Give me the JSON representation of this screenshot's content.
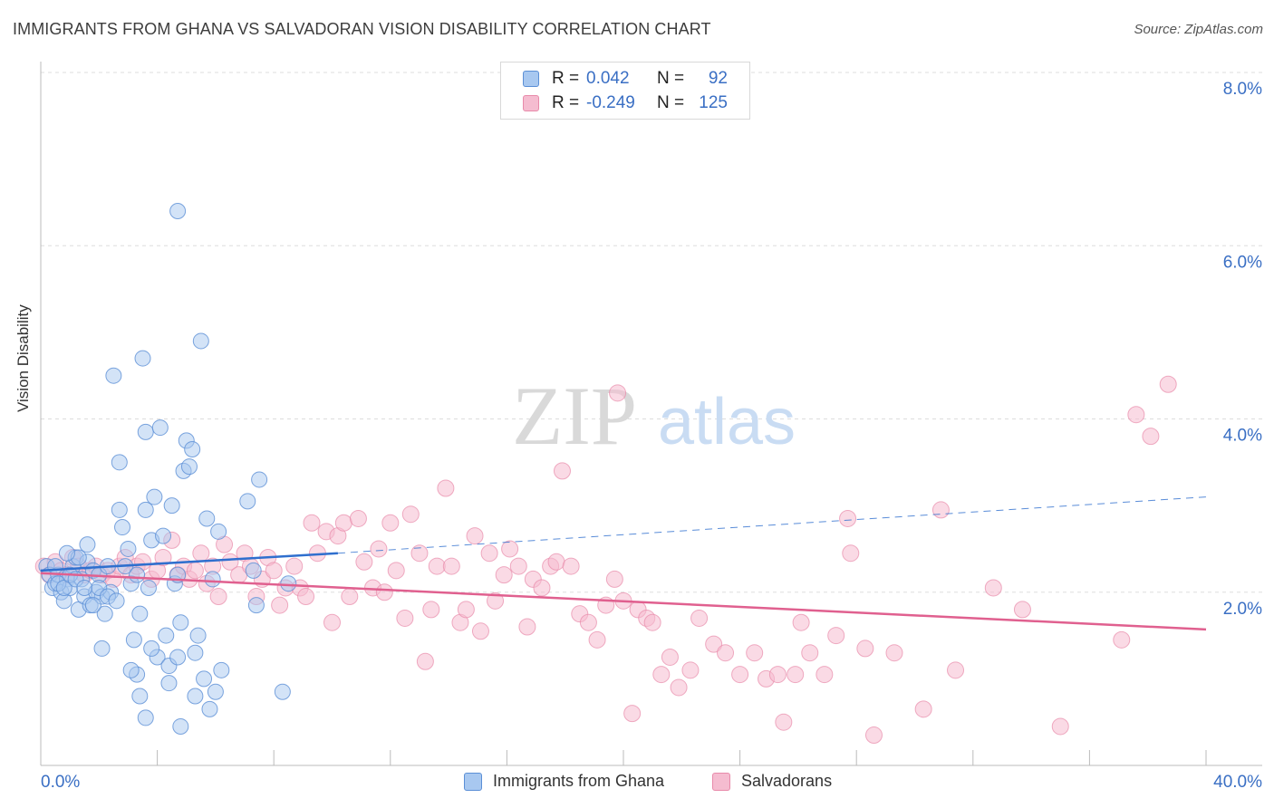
{
  "title": "IMMIGRANTS FROM GHANA VS SALVADORAN VISION DISABILITY CORRELATION CHART",
  "source": "Source: ZipAtlas.com",
  "watermark": {
    "zip": "ZIP",
    "atlas": "atlas"
  },
  "legend": {
    "r_label": "R =",
    "n_label": "N =",
    "series": [
      {
        "name": "Immigrants from Ghana",
        "r": "0.042",
        "n": "92"
      },
      {
        "name": "Salvadorans",
        "r": "-0.249",
        "n": "125"
      }
    ]
  },
  "colors": {
    "blue_fill": "#a8c8f0",
    "blue_stroke": "#5b8fd6",
    "blue_line": "#2f6fce",
    "pink_fill": "#f5bcd0",
    "pink_stroke": "#e88aaa",
    "pink_line": "#e0608f",
    "axis_text": "#3a6fc4",
    "grid": "#dddddd"
  },
  "chart_data": {
    "type": "scatter",
    "title": "IMMIGRANTS FROM GHANA VS SALVADORAN VISION DISABILITY CORRELATION CHART",
    "xlabel": "",
    "ylabel": "Vision Disability",
    "xlim": [
      0,
      40
    ],
    "ylim": [
      0,
      8.0
    ],
    "x_tick_labels": [
      "0.0%",
      "40.0%"
    ],
    "y_ticks": [
      2.0,
      4.0,
      6.0,
      8.0
    ],
    "y_tick_labels": [
      "2.0%",
      "4.0%",
      "6.0%",
      "8.0%"
    ],
    "grid": true,
    "series": [
      {
        "name": "Immigrants from Ghana",
        "trend": {
          "x0": 0,
          "y0": 2.25,
          "x1": 10.2,
          "y1": 2.45,
          "dash_x1": 40,
          "dash_y1": 3.1
        },
        "points": [
          [
            0.2,
            2.3
          ],
          [
            0.3,
            2.2
          ],
          [
            0.4,
            2.05
          ],
          [
            0.5,
            2.1
          ],
          [
            0.6,
            2.2
          ],
          [
            0.7,
            2.0
          ],
          [
            0.8,
            1.9
          ],
          [
            0.9,
            2.15
          ],
          [
            1.0,
            2.05
          ],
          [
            1.1,
            2.3
          ],
          [
            1.2,
            2.4
          ],
          [
            1.3,
            1.8
          ],
          [
            1.4,
            2.15
          ],
          [
            1.5,
            1.95
          ],
          [
            1.6,
            2.35
          ],
          [
            1.7,
            1.85
          ],
          [
            1.8,
            2.25
          ],
          [
            1.9,
            2.0
          ],
          [
            2.0,
            2.2
          ],
          [
            2.1,
            1.95
          ],
          [
            2.2,
            1.75
          ],
          [
            2.3,
            2.3
          ],
          [
            2.4,
            2.0
          ],
          [
            0.5,
            2.3
          ],
          [
            0.6,
            2.1
          ],
          [
            0.8,
            2.05
          ],
          [
            1.0,
            2.2
          ],
          [
            1.2,
            2.15
          ],
          [
            1.5,
            2.05
          ],
          [
            1.8,
            1.85
          ],
          [
            2.5,
            4.5
          ],
          [
            2.7,
            3.5
          ],
          [
            2.7,
            2.95
          ],
          [
            2.8,
            2.75
          ],
          [
            2.9,
            2.3
          ],
          [
            3.0,
            2.5
          ],
          [
            3.1,
            2.1
          ],
          [
            3.2,
            1.45
          ],
          [
            3.3,
            2.2
          ],
          [
            3.4,
            1.75
          ],
          [
            3.5,
            4.7
          ],
          [
            3.6,
            3.85
          ],
          [
            3.6,
            2.95
          ],
          [
            3.7,
            2.05
          ],
          [
            3.8,
            2.6
          ],
          [
            3.9,
            3.1
          ],
          [
            4.0,
            1.25
          ],
          [
            4.1,
            3.9
          ],
          [
            4.2,
            2.65
          ],
          [
            4.3,
            1.5
          ],
          [
            4.4,
            1.15
          ],
          [
            4.5,
            3.0
          ],
          [
            4.6,
            2.1
          ],
          [
            4.7,
            1.25
          ],
          [
            4.8,
            1.65
          ],
          [
            4.9,
            3.4
          ],
          [
            5.0,
            3.75
          ],
          [
            5.1,
            3.45
          ],
          [
            5.2,
            3.65
          ],
          [
            5.3,
            1.3
          ],
          [
            5.4,
            1.5
          ],
          [
            5.5,
            4.9
          ],
          [
            5.6,
            1.0
          ],
          [
            5.7,
            2.85
          ],
          [
            5.9,
            2.15
          ],
          [
            6.0,
            0.85
          ],
          [
            6.1,
            2.7
          ],
          [
            6.2,
            1.1
          ],
          [
            7.1,
            3.05
          ],
          [
            7.3,
            2.25
          ],
          [
            7.4,
            1.85
          ],
          [
            7.5,
            3.3
          ],
          [
            8.3,
            0.85
          ],
          [
            8.5,
            2.1
          ],
          [
            2.0,
            2.05
          ],
          [
            2.3,
            1.95
          ],
          [
            2.1,
            1.35
          ],
          [
            2.6,
            1.9
          ],
          [
            3.8,
            1.35
          ],
          [
            3.3,
            1.05
          ],
          [
            3.6,
            0.55
          ],
          [
            3.1,
            1.1
          ],
          [
            4.7,
            2.2
          ],
          [
            5.3,
            0.8
          ],
          [
            4.4,
            0.95
          ],
          [
            5.8,
            0.65
          ],
          [
            4.8,
            0.45
          ],
          [
            3.4,
            0.8
          ],
          [
            4.7,
            6.4
          ],
          [
            1.3,
            2.4
          ],
          [
            0.9,
            2.45
          ],
          [
            1.6,
            2.55
          ]
        ]
      },
      {
        "name": "Salvadorans",
        "trend": {
          "x0": 0,
          "y0": 2.22,
          "x1": 40,
          "y1": 1.57
        },
        "points": [
          [
            0.1,
            2.3
          ],
          [
            0.3,
            2.2
          ],
          [
            0.5,
            2.35
          ],
          [
            0.7,
            2.25
          ],
          [
            0.9,
            2.2
          ],
          [
            1.1,
            2.4
          ],
          [
            1.3,
            2.3
          ],
          [
            1.5,
            2.2
          ],
          [
            1.7,
            2.25
          ],
          [
            1.9,
            2.3
          ],
          [
            2.1,
            2.2
          ],
          [
            2.3,
            2.25
          ],
          [
            2.5,
            2.15
          ],
          [
            2.7,
            2.3
          ],
          [
            2.9,
            2.4
          ],
          [
            3.1,
            2.2
          ],
          [
            3.3,
            2.3
          ],
          [
            3.5,
            2.35
          ],
          [
            3.8,
            2.15
          ],
          [
            4.0,
            2.25
          ],
          [
            4.2,
            2.4
          ],
          [
            4.5,
            2.6
          ],
          [
            4.7,
            2.2
          ],
          [
            4.9,
            2.3
          ],
          [
            5.1,
            2.15
          ],
          [
            5.3,
            2.25
          ],
          [
            5.5,
            2.45
          ],
          [
            5.7,
            2.1
          ],
          [
            5.9,
            2.3
          ],
          [
            6.1,
            1.95
          ],
          [
            6.3,
            2.55
          ],
          [
            6.5,
            2.35
          ],
          [
            6.8,
            2.2
          ],
          [
            7.0,
            2.45
          ],
          [
            7.2,
            2.3
          ],
          [
            7.4,
            1.95
          ],
          [
            7.6,
            2.15
          ],
          [
            7.8,
            2.4
          ],
          [
            8.0,
            2.25
          ],
          [
            8.2,
            1.85
          ],
          [
            8.4,
            2.05
          ],
          [
            8.7,
            2.3
          ],
          [
            8.9,
            2.05
          ],
          [
            9.1,
            1.95
          ],
          [
            9.3,
            2.8
          ],
          [
            9.5,
            2.45
          ],
          [
            9.8,
            2.7
          ],
          [
            10.0,
            1.65
          ],
          [
            10.2,
            2.65
          ],
          [
            10.4,
            2.8
          ],
          [
            10.6,
            1.95
          ],
          [
            10.9,
            2.85
          ],
          [
            11.1,
            2.35
          ],
          [
            11.4,
            2.05
          ],
          [
            11.6,
            2.5
          ],
          [
            11.8,
            2.0
          ],
          [
            12.0,
            2.8
          ],
          [
            12.2,
            2.25
          ],
          [
            12.5,
            1.7
          ],
          [
            12.7,
            2.9
          ],
          [
            13.0,
            2.45
          ],
          [
            13.2,
            1.2
          ],
          [
            13.4,
            1.8
          ],
          [
            13.6,
            2.3
          ],
          [
            13.9,
            3.2
          ],
          [
            14.1,
            2.3
          ],
          [
            14.4,
            1.65
          ],
          [
            14.6,
            1.8
          ],
          [
            14.9,
            2.65
          ],
          [
            15.1,
            1.55
          ],
          [
            15.4,
            2.45
          ],
          [
            15.6,
            1.9
          ],
          [
            15.9,
            2.2
          ],
          [
            16.1,
            2.5
          ],
          [
            16.4,
            2.3
          ],
          [
            16.7,
            1.6
          ],
          [
            16.9,
            2.15
          ],
          [
            17.2,
            2.05
          ],
          [
            17.5,
            2.3
          ],
          [
            17.7,
            2.35
          ],
          [
            17.9,
            3.4
          ],
          [
            18.2,
            2.3
          ],
          [
            18.5,
            1.75
          ],
          [
            18.8,
            1.65
          ],
          [
            19.1,
            1.45
          ],
          [
            19.4,
            1.85
          ],
          [
            19.7,
            2.15
          ],
          [
            20.0,
            1.9
          ],
          [
            20.3,
            0.6
          ],
          [
            20.5,
            1.8
          ],
          [
            20.8,
            1.7
          ],
          [
            21.0,
            1.65
          ],
          [
            21.3,
            1.05
          ],
          [
            21.6,
            1.25
          ],
          [
            21.9,
            0.9
          ],
          [
            22.3,
            1.1
          ],
          [
            22.6,
            1.7
          ],
          [
            23.1,
            1.4
          ],
          [
            23.5,
            1.3
          ],
          [
            24.0,
            1.05
          ],
          [
            24.5,
            1.3
          ],
          [
            24.9,
            1.0
          ],
          [
            25.3,
            1.05
          ],
          [
            25.5,
            0.5
          ],
          [
            25.9,
            1.05
          ],
          [
            26.4,
            1.3
          ],
          [
            26.9,
            1.05
          ],
          [
            27.3,
            1.5
          ],
          [
            27.8,
            2.45
          ],
          [
            28.3,
            1.35
          ],
          [
            28.6,
            0.35
          ],
          [
            29.3,
            1.3
          ],
          [
            30.3,
            0.65
          ],
          [
            30.9,
            2.95
          ],
          [
            31.4,
            1.1
          ],
          [
            32.7,
            2.05
          ],
          [
            33.7,
            1.8
          ],
          [
            35.0,
            0.45
          ],
          [
            37.1,
            1.45
          ],
          [
            37.6,
            4.05
          ],
          [
            38.1,
            3.8
          ],
          [
            38.7,
            4.4
          ],
          [
            19.8,
            4.3
          ],
          [
            26.1,
            1.65
          ],
          [
            27.7,
            2.85
          ]
        ]
      }
    ]
  }
}
